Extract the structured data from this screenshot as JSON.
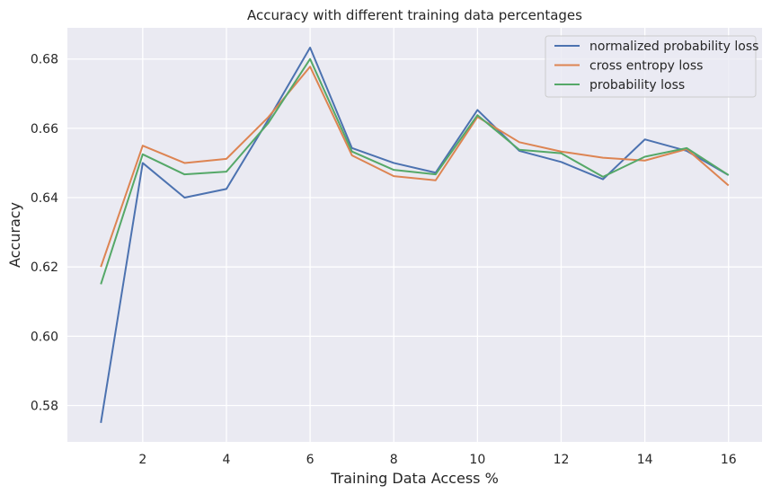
{
  "chart_data": {
    "type": "line",
    "title": "Accuracy with different training data percentages",
    "xlabel": "Training Data Access %",
    "ylabel": "Accuracy",
    "x": [
      1,
      2,
      3,
      4,
      5,
      6,
      7,
      8,
      9,
      10,
      11,
      12,
      13,
      14,
      15,
      16
    ],
    "xlim": [
      0.2,
      16.8
    ],
    "ylim": [
      0.5695,
      0.689
    ],
    "xticks": [
      2,
      4,
      6,
      8,
      10,
      12,
      14,
      16
    ],
    "yticks": [
      0.58,
      0.6,
      0.62,
      0.64,
      0.66,
      0.68
    ],
    "ytick_labels": [
      "0.58",
      "0.60",
      "0.62",
      "0.64",
      "0.66",
      "0.68"
    ],
    "grid": true,
    "legend_position": "top-right",
    "series": [
      {
        "name": "normalized probability loss",
        "color": "#4c72b0",
        "values": [
          0.575,
          0.65,
          0.64,
          0.6425,
          0.6625,
          0.6833,
          0.6543,
          0.65,
          0.6472,
          0.6653,
          0.6535,
          0.6503,
          0.6453,
          0.6568,
          0.6535,
          0.6465
        ]
      },
      {
        "name": "cross entropy loss",
        "color": "#dd8452",
        "values": [
          0.62,
          0.655,
          0.65,
          0.6512,
          0.6632,
          0.6778,
          0.6522,
          0.6462,
          0.645,
          0.6633,
          0.656,
          0.6533,
          0.6515,
          0.6507,
          0.654,
          0.6435
        ]
      },
      {
        "name": "probability loss",
        "color": "#55a868",
        "values": [
          0.615,
          0.6525,
          0.6467,
          0.6475,
          0.6615,
          0.68,
          0.6533,
          0.648,
          0.6467,
          0.6638,
          0.6538,
          0.6528,
          0.646,
          0.6518,
          0.6543,
          0.6465
        ]
      }
    ]
  }
}
